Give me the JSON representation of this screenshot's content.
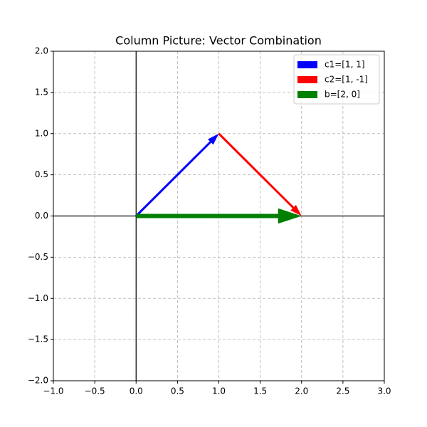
{
  "chart_data": {
    "type": "quiver",
    "title": "Column Picture: Vector Combination",
    "xlim": [
      -1,
      3
    ],
    "ylim": [
      -2,
      2
    ],
    "xticks": [
      {
        "value": -1,
        "label": "−1.0"
      },
      {
        "value": -0.5,
        "label": "−0.5"
      },
      {
        "value": 0,
        "label": "0.0"
      },
      {
        "value": 0.5,
        "label": "0.5"
      },
      {
        "value": 1,
        "label": "1.0"
      },
      {
        "value": 1.5,
        "label": "1.5"
      },
      {
        "value": 2,
        "label": "2.0"
      },
      {
        "value": 2.5,
        "label": "2.5"
      },
      {
        "value": 3,
        "label": "3.0"
      }
    ],
    "yticks": [
      {
        "value": -2,
        "label": "−2.0"
      },
      {
        "value": -1.5,
        "label": "−1.5"
      },
      {
        "value": -1,
        "label": "−1.0"
      },
      {
        "value": -0.5,
        "label": "−0.5"
      },
      {
        "value": 0,
        "label": "0.0"
      },
      {
        "value": 0.5,
        "label": "0.5"
      },
      {
        "value": 1,
        "label": "1.0"
      },
      {
        "value": 1.5,
        "label": "1.5"
      },
      {
        "value": 2,
        "label": "2.0"
      }
    ],
    "grid": true,
    "hlines": [
      0
    ],
    "vlines": [
      0
    ],
    "legend": "upper right",
    "series": [
      {
        "name": "c1=[1, 1]",
        "color": "blue",
        "x": 0,
        "y": 0,
        "dx": 1,
        "dy": 1
      },
      {
        "name": "c2=[1, -1]",
        "color": "red",
        "x": 1,
        "y": 1,
        "dx": 1,
        "dy": -1
      },
      {
        "name": "b=[2, 0]",
        "color": "green",
        "x": 0,
        "y": 0,
        "dx": 2,
        "dy": 0
      }
    ]
  }
}
